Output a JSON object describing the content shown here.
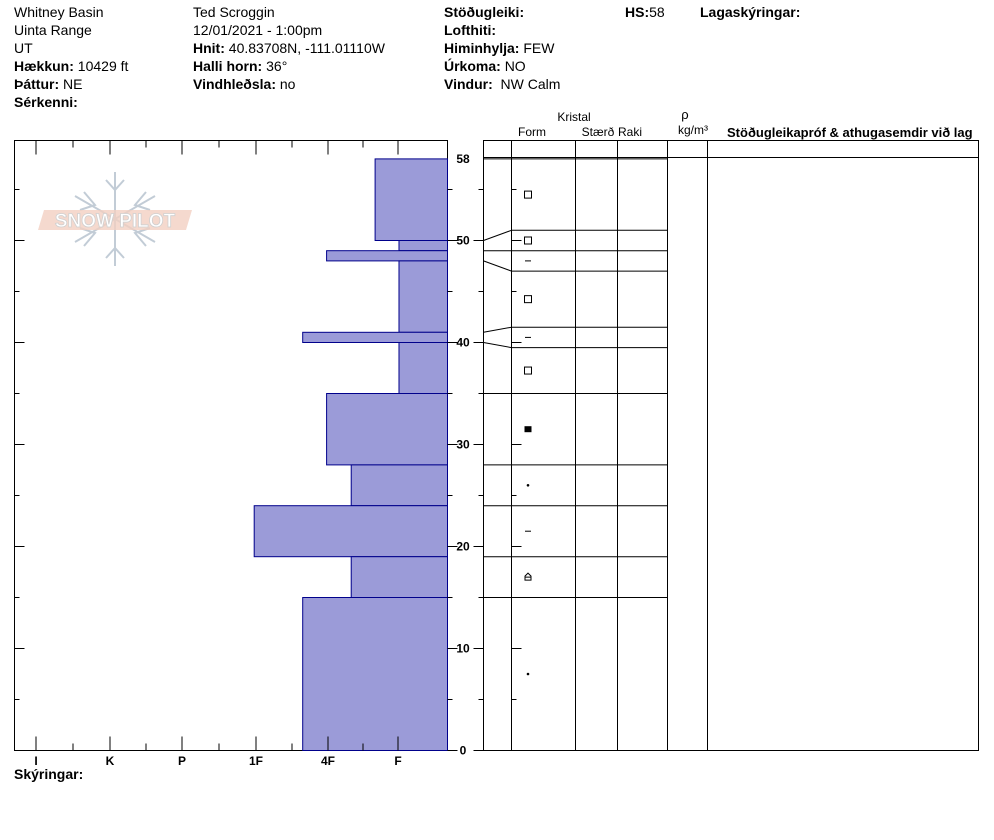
{
  "header": {
    "location": "Whitney Basin",
    "range": "Uinta Range",
    "state": "UT",
    "elevation": {
      "label": "Hækkun:",
      "value": "10429 ft"
    },
    "aspect": {
      "label": "Þáttur:",
      "value": "NE"
    },
    "features": {
      "label": "Sérkenni:",
      "value": ""
    },
    "observer": "Ted Scroggin",
    "datetime": "12/01/2021 - 1:00pm",
    "coords": {
      "label": "Hnit:",
      "value": "40.83708N, -111.01110W"
    },
    "slope": {
      "label": "Halli horn:",
      "value": "36°"
    },
    "wind_loading": {
      "label": "Vindhleðsla:",
      "value": "no"
    },
    "stability": {
      "label": "Stöðugleiki:",
      "value": ""
    },
    "air_temp": {
      "label": "Lofthiti:",
      "value": ""
    },
    "sky": {
      "label": "Himinhylja:",
      "value": "FEW"
    },
    "precip": {
      "label": "Úrkoma:",
      "value": "NO"
    },
    "wind": {
      "label": "Vindur:",
      "value": "NW Calm"
    },
    "hs": {
      "label": "HS:",
      "value": "58"
    },
    "layer_notes": {
      "label": "Lagaskýringar:",
      "value": ""
    }
  },
  "logo_text": "SNOW PILOT",
  "columns": {
    "crystal": "Kristal",
    "form": "Form",
    "size": "Stærð",
    "moisture": "Raki",
    "rho": "ρ",
    "density_unit": "kg/m³",
    "tests": "Stöðugleikapróf & athugasemdir við lag"
  },
  "footer": {
    "label": "Skýringar:",
    "value": ""
  },
  "chart_data": {
    "type": "bar",
    "orientation": "horizontal",
    "y_axis": {
      "range": [
        0,
        58
      ],
      "ticks": [
        0,
        10,
        20,
        30,
        40,
        50,
        58
      ],
      "unit": "cm"
    },
    "x_axis": {
      "categories": [
        "I",
        "K",
        "P",
        "1F",
        "4F",
        "F"
      ]
    },
    "colors": {
      "bar_fill": "#9b9bd8",
      "bar_stroke": "#00008b"
    },
    "layers": [
      {
        "top": 58,
        "bottom": 50,
        "hardness": 1.0,
        "form": "faceted"
      },
      {
        "top": 50,
        "bottom": 49,
        "hardness": 0.67,
        "form": "faceted"
      },
      {
        "top": 49,
        "bottom": 48,
        "hardness": 1.67,
        "form": "surface-hoar"
      },
      {
        "top": 48,
        "bottom": 41,
        "hardness": 0.67,
        "form": "faceted"
      },
      {
        "top": 41,
        "bottom": 40,
        "hardness": 2.0,
        "form": "surface-hoar"
      },
      {
        "top": 40,
        "bottom": 35,
        "hardness": 0.67,
        "form": "faceted"
      },
      {
        "top": 35,
        "bottom": 28,
        "hardness": 1.67,
        "form": "melt-freeze"
      },
      {
        "top": 28,
        "bottom": 24,
        "hardness": 1.33,
        "form": "rounded"
      },
      {
        "top": 24,
        "bottom": 19,
        "hardness": 2.67,
        "form": "surface-hoar"
      },
      {
        "top": 19,
        "bottom": 15,
        "hardness": 1.33,
        "form": "depth-hoar"
      },
      {
        "top": 15,
        "bottom": 0,
        "hardness": 2.0,
        "form": "rounded"
      }
    ]
  }
}
